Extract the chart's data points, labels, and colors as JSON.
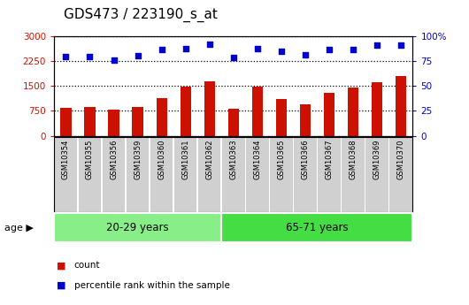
{
  "title": "GDS473 / 223190_s_at",
  "samples": [
    "GSM10354",
    "GSM10355",
    "GSM10356",
    "GSM10359",
    "GSM10360",
    "GSM10361",
    "GSM10362",
    "GSM10363",
    "GSM10364",
    "GSM10365",
    "GSM10366",
    "GSM10367",
    "GSM10368",
    "GSM10369",
    "GSM10370"
  ],
  "counts": [
    850,
    880,
    790,
    870,
    1150,
    1480,
    1650,
    820,
    1490,
    1120,
    960,
    1300,
    1450,
    1620,
    1820
  ],
  "percentile_ranks": [
    80,
    80,
    76,
    81,
    87,
    88,
    92,
    79,
    88,
    85,
    82,
    87,
    87,
    91,
    91
  ],
  "bar_color": "#cc1100",
  "dot_color": "#0000cc",
  "ylim_left": [
    0,
    3000
  ],
  "ylim_right": [
    0,
    100
  ],
  "yticks_left": [
    0,
    750,
    1500,
    2250,
    3000
  ],
  "yticks_right": [
    0,
    25,
    50,
    75,
    100
  ],
  "yticklabels_right": [
    "0",
    "25",
    "50",
    "75",
    "100%"
  ],
  "groups": [
    {
      "label": "20-29 years",
      "start": 0,
      "end": 7,
      "color": "#88ee88"
    },
    {
      "label": "65-71 years",
      "start": 7,
      "end": 15,
      "color": "#44dd44"
    }
  ],
  "age_label": "age",
  "legend_items": [
    {
      "label": "count",
      "color": "#cc1100"
    },
    {
      "label": "percentile rank within the sample",
      "color": "#0000cc"
    }
  ],
  "bar_area_bg": "#d0d0d0",
  "plot_bg": "#ffffff",
  "title_fontsize": 11,
  "tick_fontsize": 7.5,
  "xlabel_fontsize": 6.0,
  "group_fontsize": 8.5
}
